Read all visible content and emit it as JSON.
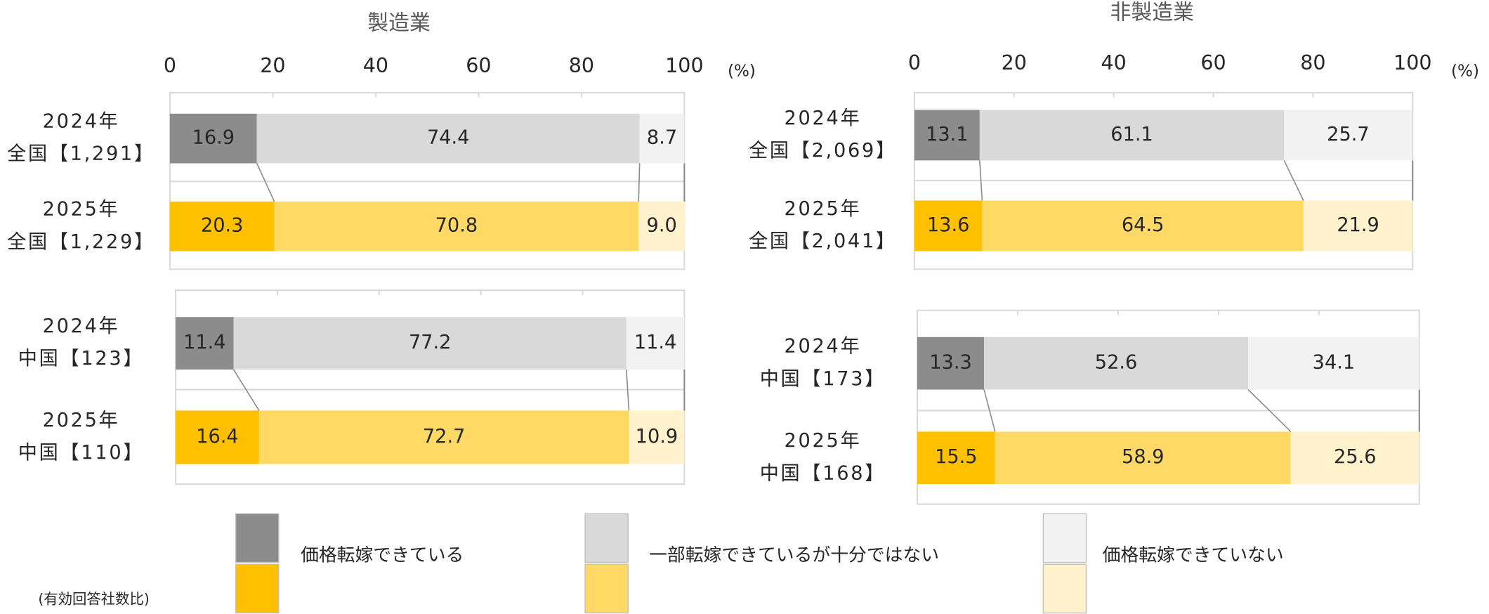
{
  "chart_data": [
    {
      "type": "stacked_bar_h",
      "title": "製造業",
      "x_unit": "(%)",
      "xlim": [
        0,
        100
      ],
      "xticks": [
        0,
        20,
        40,
        60,
        80,
        100
      ],
      "panels": [
        {
          "categories": [
            [
              "2024年",
              "全国【1,291】"
            ],
            [
              "2025年",
              "全国【1,229】"
            ]
          ],
          "series": [
            {
              "values": [
                16.9,
                20.3
              ],
              "value_labels": [
                "16.9",
                "20.3"
              ]
            },
            {
              "values": [
                74.4,
                70.8
              ],
              "value_labels": [
                "74.4",
                "70.8"
              ]
            },
            {
              "values": [
                8.7,
                9.0
              ],
              "value_labels": [
                "8.7",
                "9.0"
              ]
            }
          ]
        },
        {
          "categories": [
            [
              "2024年",
              "中国【123】"
            ],
            [
              "2025年",
              "中国【110】"
            ]
          ],
          "series": [
            {
              "values": [
                11.4,
                16.4
              ],
              "value_labels": [
                "11.4",
                "16.4"
              ]
            },
            {
              "values": [
                77.2,
                72.7
              ],
              "value_labels": [
                "77.2",
                "72.7"
              ]
            },
            {
              "values": [
                11.4,
                10.9
              ],
              "value_labels": [
                "11.4",
                "10.9"
              ]
            }
          ]
        }
      ]
    },
    {
      "type": "stacked_bar_h",
      "title": "非製造業",
      "x_unit": "(%)",
      "xlim": [
        0,
        100
      ],
      "xticks": [
        0,
        20,
        40,
        60,
        80,
        100
      ],
      "panels": [
        {
          "categories": [
            [
              "2024年",
              "全国【2,069】"
            ],
            [
              "2025年",
              "全国【2,041】"
            ]
          ],
          "series": [
            {
              "values": [
                13.1,
                13.6
              ],
              "value_labels": [
                "13.1",
                "13.6"
              ]
            },
            {
              "values": [
                61.1,
                64.5
              ],
              "value_labels": [
                "61.1",
                "64.5"
              ]
            },
            {
              "values": [
                25.7,
                21.9
              ],
              "value_labels": [
                "25.7",
                "21.9"
              ]
            }
          ]
        },
        {
          "categories": [
            [
              "2024年",
              "中国【173】"
            ],
            [
              "2025年",
              "中国【168】"
            ]
          ],
          "series": [
            {
              "values": [
                13.3,
                15.5
              ],
              "value_labels": [
                "13.3",
                "15.5"
              ]
            },
            {
              "values": [
                52.6,
                58.9
              ],
              "value_labels": [
                "52.6",
                "58.9"
              ]
            },
            {
              "values": [
                34.1,
                25.6
              ],
              "value_labels": [
                "34.1",
                "25.6"
              ]
            }
          ]
        }
      ]
    }
  ],
  "legend": {
    "series": [
      {
        "name": "価格転嫁できている",
        "colors": [
          "#8c8c8c",
          "#ffc000"
        ]
      },
      {
        "name": "一部転嫁できているが十分ではない",
        "colors": [
          "#d9d9d9",
          "#ffd966"
        ]
      },
      {
        "name": "価格転嫁できていない",
        "colors": [
          "#f2f2f2",
          "#fff2cc"
        ]
      }
    ],
    "note": "(有効回答社数比)"
  }
}
